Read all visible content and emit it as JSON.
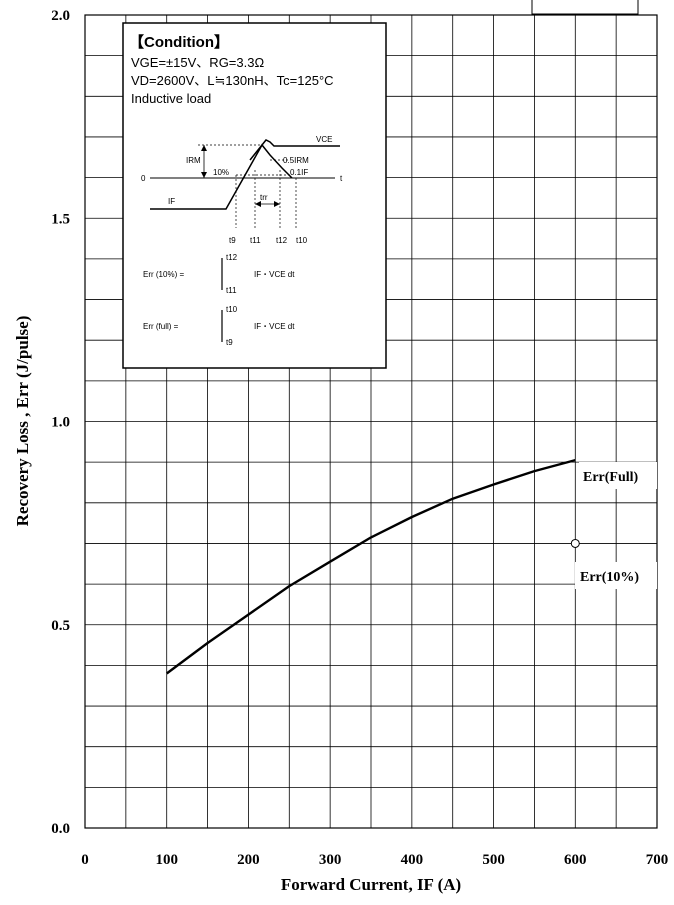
{
  "chart_data": {
    "type": "line",
    "xlabel": "Forward Current, IF (A)",
    "ylabel": "Recovery Loss , Err (J/pulse)",
    "xlim": [
      0,
      700
    ],
    "ylim": [
      0.0,
      2.0
    ],
    "x_ticks": [
      0,
      100,
      200,
      300,
      400,
      500,
      600,
      700
    ],
    "y_ticks": [
      0.0,
      0.5,
      1.0,
      1.5,
      2.0
    ],
    "x_tick_labels": [
      "0",
      "100",
      "200",
      "300",
      "400",
      "500",
      "600",
      "700"
    ],
    "y_tick_labels": [
      "0.0",
      "0.5",
      "1.0",
      "1.5",
      "2.0"
    ],
    "grid": true,
    "series": [
      {
        "name": "Err(Full)",
        "x": [
          100,
          150,
          200,
          250,
          300,
          350,
          400,
          450,
          500,
          550,
          600
        ],
        "y": [
          0.38,
          0.455,
          0.525,
          0.595,
          0.655,
          0.715,
          0.765,
          0.81,
          0.845,
          0.878,
          0.905
        ]
      },
      {
        "name": "Err(10%)",
        "x": [
          600
        ],
        "y": [
          0.7
        ]
      }
    ]
  },
  "condition_box": {
    "title": "【Condition】",
    "line1": "VGE=±15V、RG=3.3Ω",
    "line2": "VD=2600V、L≒130nH、Tc=125°C",
    "line3": "Inductive load",
    "wf_vce": "VCE",
    "wf_irm": "IRM",
    "wf_half_irm": "0.5IRM",
    "wf_tenth_if": "0.1IF",
    "wf_ten_pct": "10%",
    "wf_zero": "0",
    "wf_t": "t",
    "wf_if": "IF",
    "wf_trr": "trr",
    "wf_t9": "t9",
    "wf_t11": "t11",
    "wf_t12": "t12",
    "wf_t10": "t10",
    "eq1_lhs": "Err (10%) =",
    "eq1_upper": "t12",
    "eq1_lower": "t11",
    "eq1_integrand": "IF・VCE dt",
    "eq2_lhs": "Err (full) =",
    "eq2_upper": "t10",
    "eq2_lower": "t9",
    "eq2_integrand": "IF・VCE dt"
  }
}
